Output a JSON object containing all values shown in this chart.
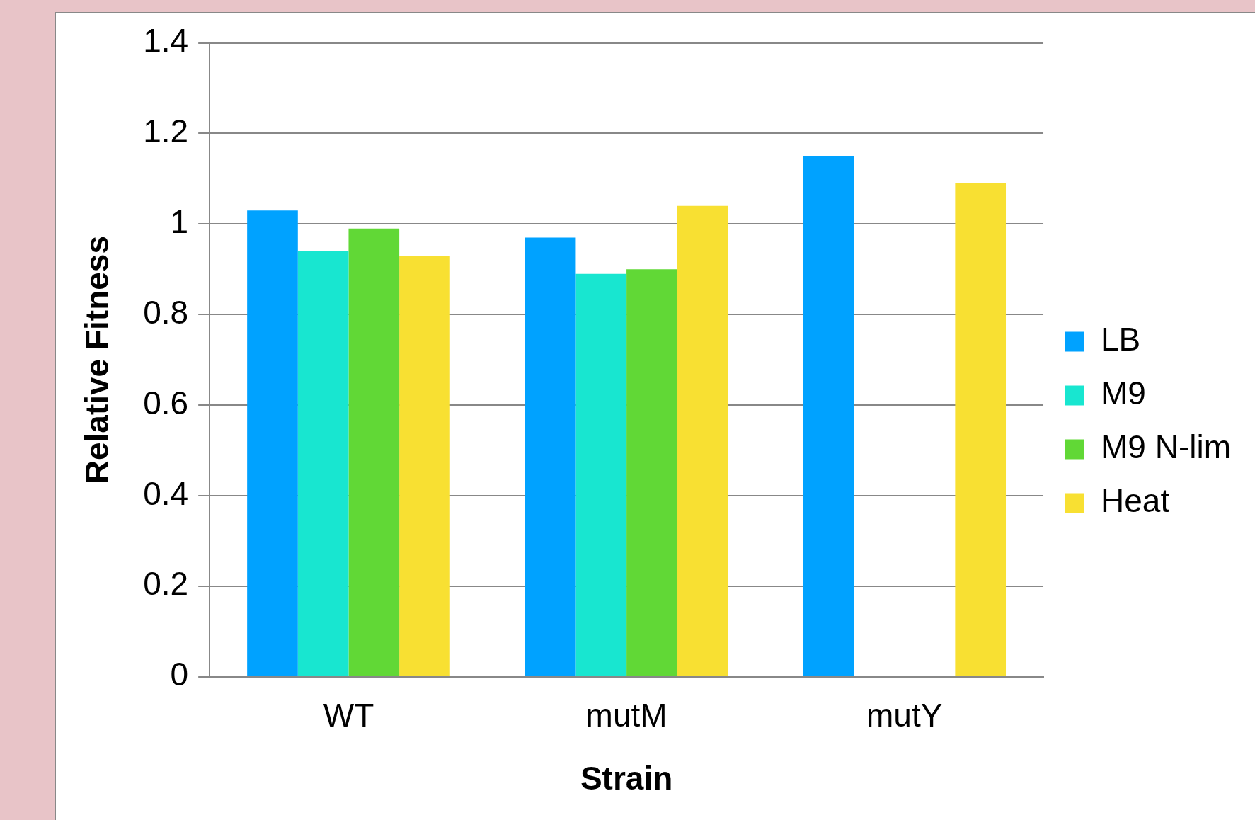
{
  "chart_data": {
    "type": "bar",
    "xlabel": "Strain",
    "ylabel": "Relative Fitness",
    "categories": [
      "WT",
      "mutM",
      "mutY"
    ],
    "series": [
      {
        "name": "LB",
        "color": "#00a2ff",
        "values": [
          1.03,
          0.97,
          1.15
        ]
      },
      {
        "name": "M9",
        "color": "#18e6d0",
        "values": [
          0.94,
          0.89,
          null
        ]
      },
      {
        "name": "M9 N-lim",
        "color": "#61d836",
        "values": [
          0.99,
          0.9,
          null
        ]
      },
      {
        "name": "Heat",
        "color": "#f8e032",
        "values": [
          0.93,
          1.04,
          1.09
        ]
      }
    ],
    "ylim": [
      0,
      1.4
    ],
    "yticks": [
      0,
      0.2,
      0.4,
      0.6,
      0.8,
      1,
      1.2,
      1.4
    ],
    "grid": "y",
    "legend": "right"
  }
}
